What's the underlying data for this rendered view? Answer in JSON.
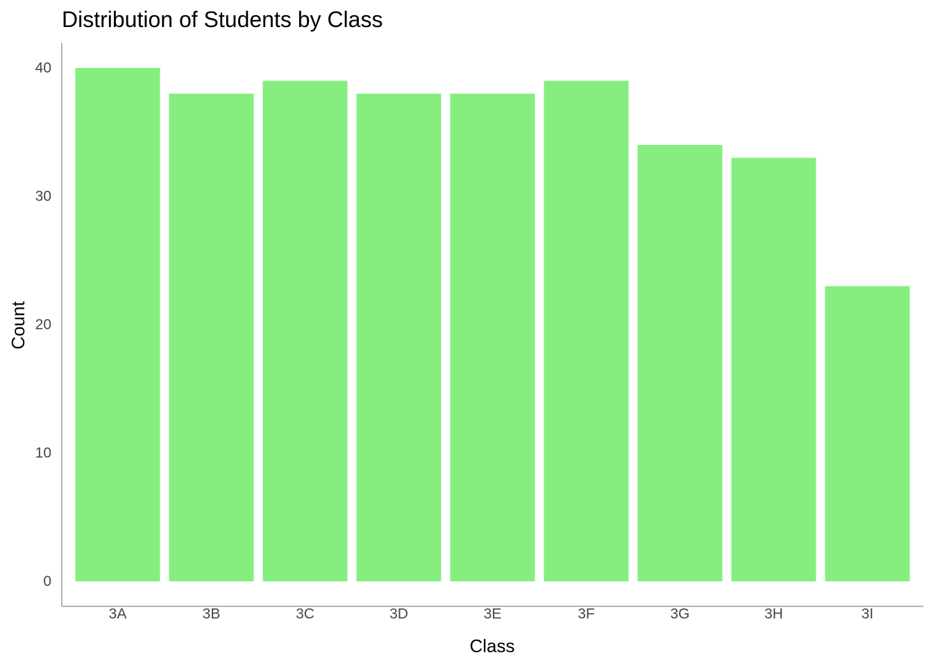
{
  "chart_data": {
    "type": "bar",
    "title": "Distribution of Students by Class",
    "xlabel": "Class",
    "ylabel": "Count",
    "categories": [
      "3A",
      "3B",
      "3C",
      "3D",
      "3E",
      "3F",
      "3G",
      "3H",
      "3I"
    ],
    "values": [
      40,
      38,
      39,
      38,
      38,
      39,
      34,
      33,
      23
    ],
    "ylim": [
      0,
      42
    ],
    "yticks": [
      0,
      10,
      20,
      30,
      40
    ],
    "grid": false,
    "legend": "none",
    "bar_color": "#85EE7E",
    "axis_color": "#b3b3b3"
  }
}
